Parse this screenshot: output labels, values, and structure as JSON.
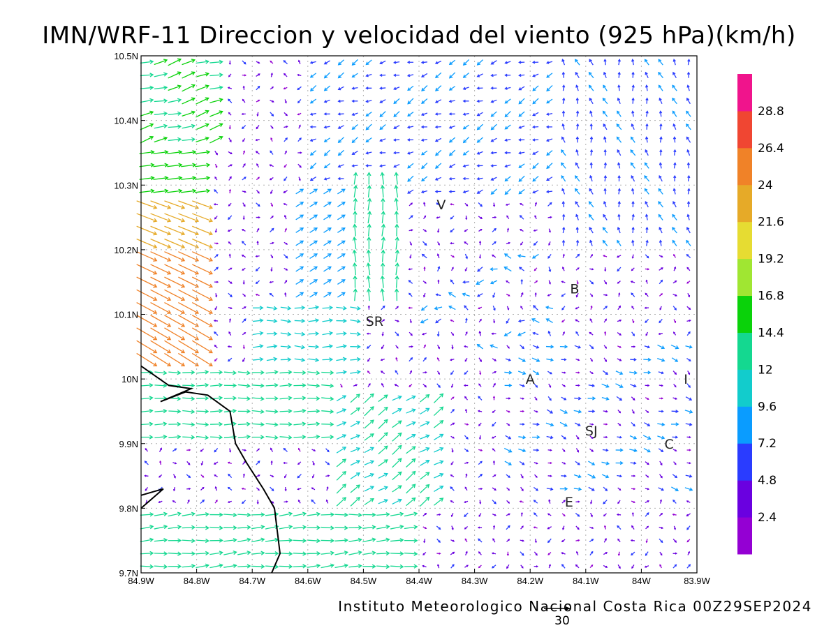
{
  "title": "IMN/WRF-11 Direccion y velocidad del viento (925 hPa)(km/h)",
  "credit": "Instituto Meteorologico Nacional Costa Rica 00Z29SEP2024",
  "reference_vector_label": "30",
  "x_ticks": [
    "84.9W",
    "84.8W",
    "84.7W",
    "84.6W",
    "84.5W",
    "84.4W",
    "84.3W",
    "84.2W",
    "84.1W",
    "84W",
    "83.9W"
  ],
  "y_ticks": [
    "10.5N",
    "10.4N",
    "10.3N",
    "10.2N",
    "10.1N",
    "10N",
    "9.9N",
    "9.8N",
    "9.7N"
  ],
  "places": [
    {
      "label": "V",
      "lon": -84.36,
      "lat": 10.27
    },
    {
      "label": "B",
      "lon": -84.12,
      "lat": 10.14
    },
    {
      "label": "SR",
      "lon": -84.48,
      "lat": 10.09
    },
    {
      "label": "A",
      "lon": -84.2,
      "lat": 10.0
    },
    {
      "label": "I",
      "lon": -83.92,
      "lat": 10.0
    },
    {
      "label": "SJ",
      "lon": -84.09,
      "lat": 9.92
    },
    {
      "label": "C",
      "lon": -83.95,
      "lat": 9.9
    },
    {
      "label": "E",
      "lon": -84.13,
      "lat": 9.81
    }
  ],
  "colorbar": {
    "labels": [
      "2.4",
      "4.8",
      "7.2",
      "9.6",
      "12",
      "14.4",
      "16.8",
      "19.2",
      "21.6",
      "24",
      "26.4",
      "28.8"
    ],
    "colors": [
      "#9400d3",
      "#6a00e0",
      "#2a3cff",
      "#0a9cff",
      "#12cccc",
      "#14d890",
      "#0ad20a",
      "#a0e632",
      "#e6dc32",
      "#e6aa28",
      "#f08228",
      "#f04632",
      "#f0148c"
    ]
  },
  "chart_data": {
    "type": "wind-vector-map",
    "title": "IMN/WRF-11 Direccion y velocidad del viento (925 hPa)(km/h)",
    "units": "km/h",
    "level": "925 hPa",
    "valid_time": "00Z29SEP2024",
    "xlim": [
      -84.9,
      -83.9
    ],
    "ylim": [
      9.7,
      10.5
    ],
    "reference_vector": 30,
    "coastline": [
      {
        "lon": -84.9,
        "lat": 10.02
      },
      {
        "lon": -84.85,
        "lat": 9.99
      },
      {
        "lon": -84.81,
        "lat": 9.985
      },
      {
        "lon": -84.865,
        "lat": 9.965
      },
      {
        "lon": -84.82,
        "lat": 9.98
      },
      {
        "lon": -84.78,
        "lat": 9.975
      },
      {
        "lon": -84.74,
        "lat": 9.95
      },
      {
        "lon": -84.73,
        "lat": 9.9
      },
      {
        "lon": -84.71,
        "lat": 9.87
      },
      {
        "lon": -84.68,
        "lat": 9.83
      },
      {
        "lon": -84.66,
        "lat": 9.8
      },
      {
        "lon": -84.65,
        "lat": 9.73
      },
      {
        "lon": -84.665,
        "lat": 9.7
      }
    ],
    "nicoya_fragment": [
      {
        "lon": -84.9,
        "lat": 9.82
      },
      {
        "lon": -84.86,
        "lat": 9.83
      },
      {
        "lon": -84.9,
        "lat": 9.8
      }
    ],
    "wind_regions": [
      {
        "region": "west-coast-north",
        "lon": [
          -84.9,
          -84.8
        ],
        "lat": [
          10.1,
          10.25
        ],
        "direction_to": "ESE",
        "speed": 25
      },
      {
        "region": "nw-corner",
        "lon": [
          -84.9,
          -84.75
        ],
        "lat": [
          10.35,
          10.5
        ],
        "direction_to": "ENE",
        "speed": 17
      },
      {
        "region": "gulf-flow",
        "lon": [
          -84.85,
          -84.55
        ],
        "lat": [
          9.9,
          10.0
        ],
        "direction_to": "E",
        "speed": 13
      },
      {
        "region": "central-southwest",
        "lon": [
          -84.55,
          -84.35
        ],
        "lat": [
          9.8,
          9.95
        ],
        "direction_to": "NE",
        "speed": 13
      },
      {
        "region": "san-ramon-convergence",
        "lon": [
          -84.5,
          -84.42
        ],
        "lat": [
          10.15,
          10.3
        ],
        "direction_to": "N",
        "speed": 15
      },
      {
        "region": "northern-plains",
        "lon": [
          -84.6,
          -84.1
        ],
        "lat": [
          10.3,
          10.45
        ],
        "direction_to": "SW",
        "speed": 7
      },
      {
        "region": "eastern-valley",
        "lon": [
          -84.2,
          -83.9
        ],
        "lat": [
          9.8,
          10.05
        ],
        "direction_to": "ESE",
        "speed": 6
      },
      {
        "region": "southern-edge",
        "lon": [
          -84.7,
          -84.4
        ],
        "lat": [
          9.7,
          9.78
        ],
        "direction_to": "E",
        "speed": 15
      }
    ]
  }
}
